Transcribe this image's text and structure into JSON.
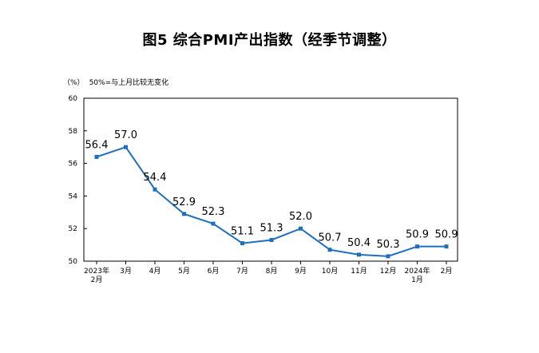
{
  "title": "图5  综合PMI产出指数（经季节调整）",
  "unit": "（%）",
  "note": "50%=与上月比较无变化",
  "colors": {
    "line": "#1f6fbf",
    "axis": "#000000"
  },
  "chart_data": {
    "type": "line",
    "categories": [
      [
        "2023年",
        "2月"
      ],
      [
        "3月"
      ],
      [
        "4月"
      ],
      [
        "5月"
      ],
      [
        "6月"
      ],
      [
        "7月"
      ],
      [
        "8月"
      ],
      [
        "9月"
      ],
      [
        "10月"
      ],
      [
        "11月"
      ],
      [
        "12月"
      ],
      [
        "2024年",
        "1月"
      ],
      [
        "2月"
      ]
    ],
    "values": [
      56.4,
      57.0,
      54.4,
      52.9,
      52.3,
      51.1,
      51.3,
      52.0,
      50.7,
      50.4,
      50.3,
      50.9,
      50.9
    ],
    "data_labels": [
      "56.4",
      "57.0",
      "54.4",
      "52.9",
      "52.3",
      "51.1",
      "51.3",
      "52.0",
      "50.7",
      "50.4",
      "50.3",
      "50.9",
      "50.9"
    ],
    "ylim": [
      50,
      60
    ],
    "yticks": [
      50,
      52,
      54,
      56,
      58,
      60
    ],
    "grid": false,
    "legend": "none"
  }
}
